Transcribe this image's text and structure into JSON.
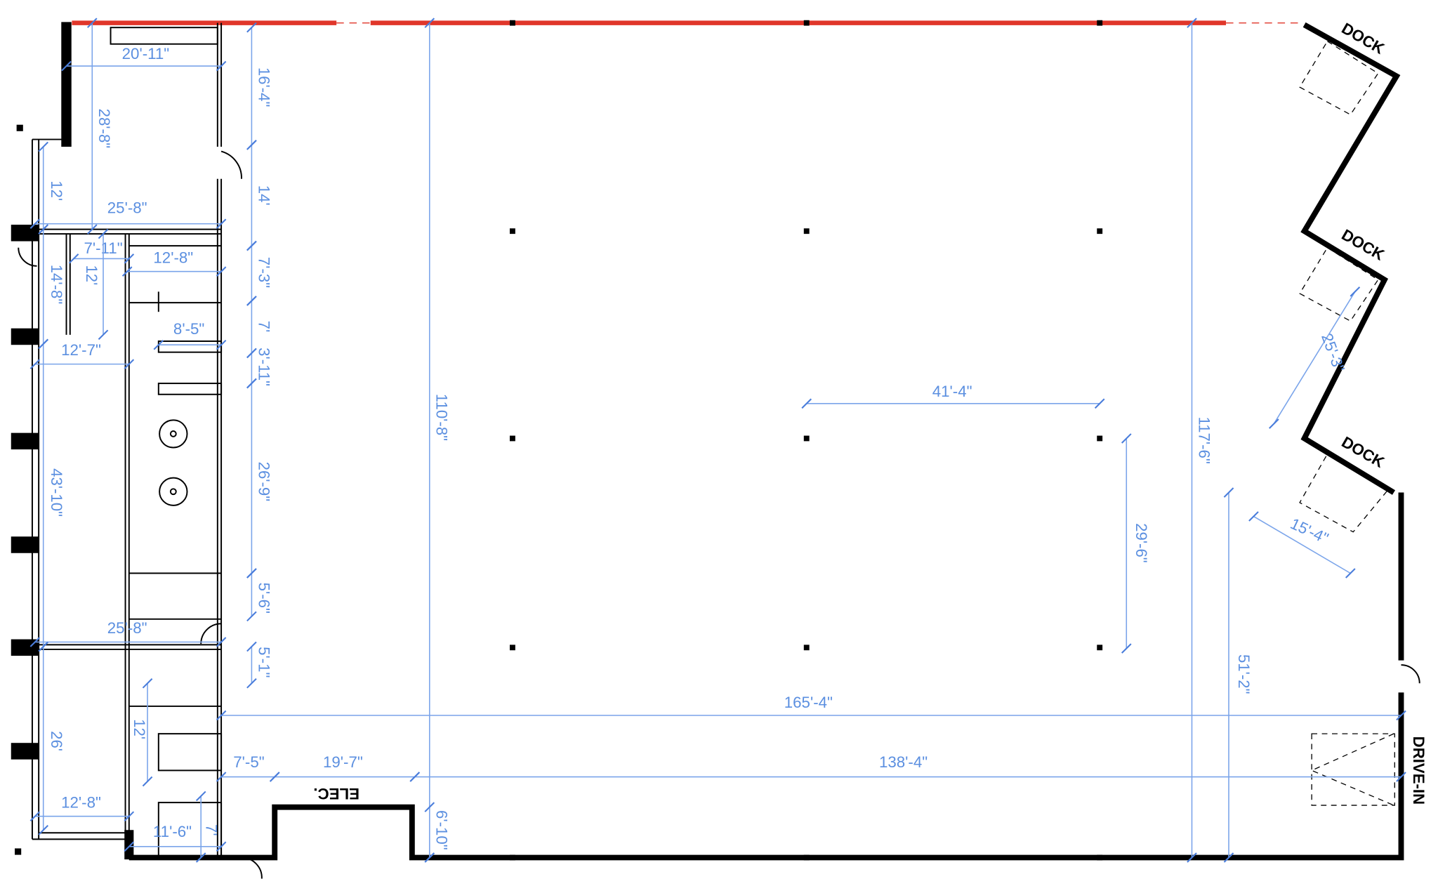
{
  "plan": {
    "accent_color": "#5b8fe0",
    "boundary_color": "#e0362a",
    "room_labels": {
      "elec": "ELEC.",
      "dock_1": "DOCK",
      "dock_2": "DOCK",
      "dock_3": "DOCK",
      "drive_in": "DRIVE-IN"
    },
    "dimensions": [
      "20'-11\"",
      "28'-8\"",
      "16'-4\"",
      "14'",
      "12'",
      "25'-8\"",
      "7'-11\"",
      "12'-8\"",
      "7'-3\"",
      "12'",
      "14'-8\"",
      "7'",
      "8'-5\"",
      "3'-11\"",
      "12'-7\"",
      "110'-8\"",
      "41'-4\"",
      "117'-6\"",
      "43'-10\"",
      "26'-9\"",
      "29'-6\"",
      "25'-3\"",
      "15'-4\"",
      "5'-6\"",
      "25'-8\"",
      "5'-1\"",
      "51'-2\"",
      "165'-4\"",
      "12'",
      "26'",
      "7'-5\"",
      "19'-7\"",
      "138'-4\"",
      "12'-8\"",
      "11'-6\"",
      "7'",
      "6'-10\""
    ]
  }
}
